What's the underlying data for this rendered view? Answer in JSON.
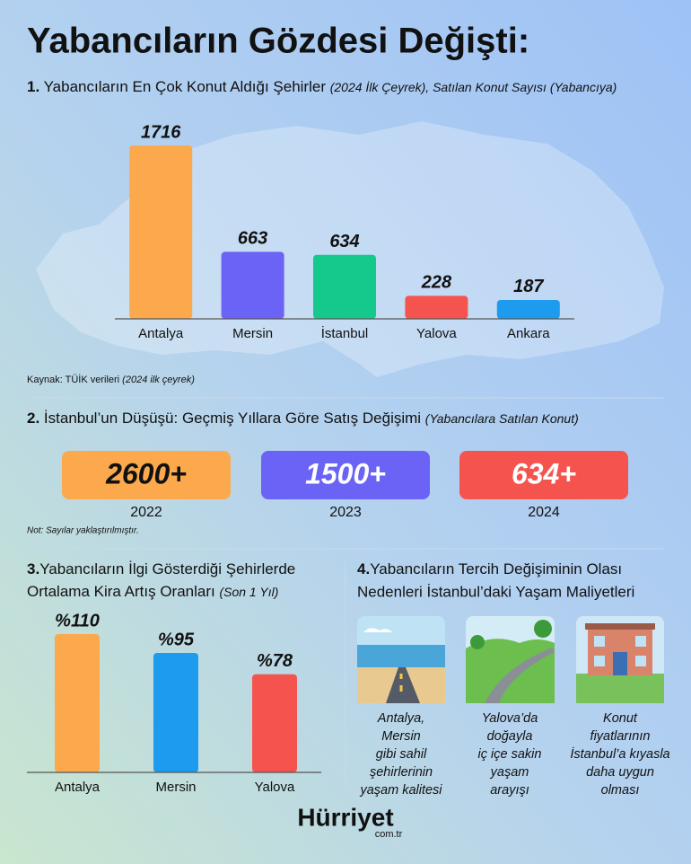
{
  "title": "Yabancıların Gözdesi Değişti:",
  "chart_data": [
    {
      "type": "bar",
      "number": "1.",
      "title": "Yabancıların En Çok Konut Aldığı Şehirler",
      "subtitle": "(2024 İlk Çeyrek), Satılan Konut Sayısı (Yabancıya)",
      "categories": [
        "Antalya",
        "Mersin",
        "İstanbul",
        "Yalova",
        "Ankara"
      ],
      "values": [
        1716,
        663,
        634,
        228,
        187
      ],
      "colors": [
        "#fba94c",
        "#6b63f5",
        "#14c98b",
        "#f5544e",
        "#1c9bef"
      ]
    },
    {
      "type": "bar",
      "number": "3.",
      "title_lines": [
        "Yabancıların İlgi Gösterdiği Şehirlerde",
        "Ortalama Kira Artış Oranları"
      ],
      "subtitle": "(Son 1 Yıl)",
      "categories": [
        "Antalya",
        "Mersin",
        "Yalova"
      ],
      "values": [
        110,
        95,
        78
      ],
      "value_labels": [
        "%110",
        "%95",
        "%78"
      ],
      "colors": [
        "#fba94c",
        "#1c9bef",
        "#f5544e"
      ]
    }
  ],
  "source": {
    "text": "Kaynak: TÜİK verileri",
    "detail": "(2024 ilk çeyrek)"
  },
  "section2": {
    "number": "2.",
    "title": "İstanbul’un Düşüşü: Geçmiş Yıllara Göre Satış Değişimi",
    "subtitle": "(Yabancılara Satılan Konut)",
    "cards": [
      {
        "value": "2600+",
        "year": "2022"
      },
      {
        "value": "1500+",
        "year": "2023"
      },
      {
        "value": "634+",
        "year": "2024"
      }
    ],
    "note": "Not: Sayılar yaklaştırılmıştır."
  },
  "section4": {
    "number": "4.",
    "title_lines": [
      "Yabancıların Tercih Değişiminin Olası",
      "Nedenleri İstanbul’daki Yaşam Maliyetleri"
    ],
    "items": [
      {
        "caption_lines": [
          "Antalya,",
          "Mersin",
          "gibi sahil",
          "şehirlerinin",
          "yaşam kalitesi"
        ]
      },
      {
        "caption_lines": [
          "Yalova’da",
          "doğayla",
          "iç içe sakin",
          "yaşam",
          "arayışı"
        ]
      },
      {
        "caption_lines": [
          "Konut",
          "fiyatlarının",
          "İstanbul’a kıyasla",
          "daha uygun",
          "olması"
        ]
      }
    ]
  },
  "logo": {
    "name": "Hürriyet",
    "domain": "com.tr"
  }
}
